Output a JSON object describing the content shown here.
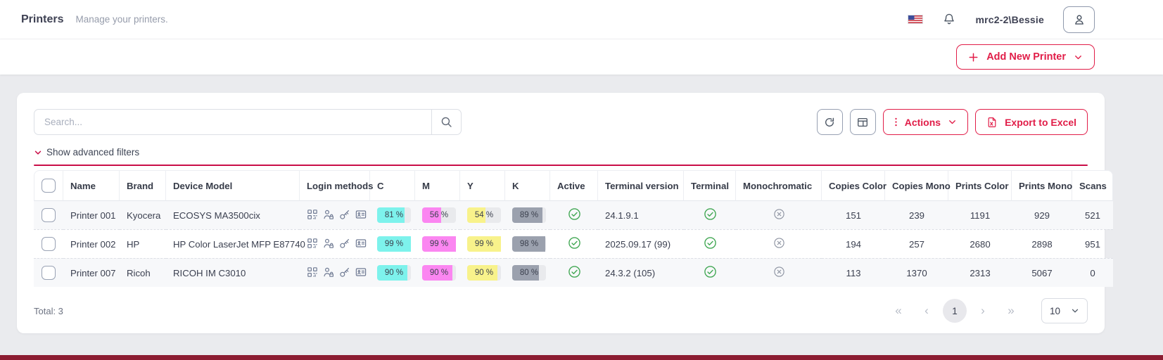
{
  "accent_color": "#e11d48",
  "header": {
    "title": "Printers",
    "subtitle": "Manage your printers.",
    "username": "mrc2-2\\Bessie"
  },
  "subheader": {
    "add_button": "Add New Printer"
  },
  "toolbar": {
    "search_placeholder": "Search...",
    "actions_label": "Actions",
    "export_label": "Export to Excel",
    "advanced_filters": "Show advanced filters"
  },
  "table": {
    "columns": [
      "Name",
      "Brand",
      "Device Model",
      "Login methods",
      "C",
      "M",
      "Y",
      "K",
      "Active",
      "Terminal version",
      "Terminal",
      "Monochromatic",
      "Copies Color",
      "Copies Mono",
      "Prints Color",
      "Prints Mono",
      "Scans"
    ],
    "login_methods": [
      "qr-code",
      "user-lock",
      "key",
      "id-card"
    ],
    "cmyk_colors": {
      "c": "#7df2ec",
      "m": "#fb86f1",
      "y": "#f8f28b",
      "k": "#9ba1ae",
      "track": "#e9eaed"
    },
    "status_colors": {
      "check": "#41a753",
      "cross": "#8d93a1"
    },
    "rows": [
      {
        "name": "Printer 001",
        "brand": "Kyocera",
        "model": "ECOSYS MA3500cix",
        "c": 81,
        "m": 56,
        "y": 54,
        "k": 89,
        "active": true,
        "terminal_version": "24.1.9.1",
        "terminal": true,
        "monochromatic": false,
        "copies_color": "151",
        "copies_mono": "239",
        "prints_color": "1191",
        "prints_mono": "929",
        "scans": "521"
      },
      {
        "name": "Printer 002",
        "brand": "HP",
        "model": "HP Color LaserJet MFP E87740",
        "c": 99,
        "m": 99,
        "y": 99,
        "k": 98,
        "active": true,
        "terminal_version": "2025.09.17 (99)",
        "terminal": true,
        "monochromatic": false,
        "copies_color": "194",
        "copies_mono": "257",
        "prints_color": "2680",
        "prints_mono": "2898",
        "scans": "951"
      },
      {
        "name": "Printer 007",
        "brand": "Ricoh",
        "model": "RICOH IM C3010",
        "c": 90,
        "m": 90,
        "y": 90,
        "k": 80,
        "active": true,
        "terminal_version": "24.3.2 (105)",
        "terminal": true,
        "monochromatic": false,
        "copies_color": "113",
        "copies_mono": "1370",
        "prints_color": "2313",
        "prints_mono": "5067",
        "scans": "0"
      }
    ]
  },
  "footer": {
    "total": "Total: 3",
    "current_page": "1",
    "page_size": "10"
  }
}
